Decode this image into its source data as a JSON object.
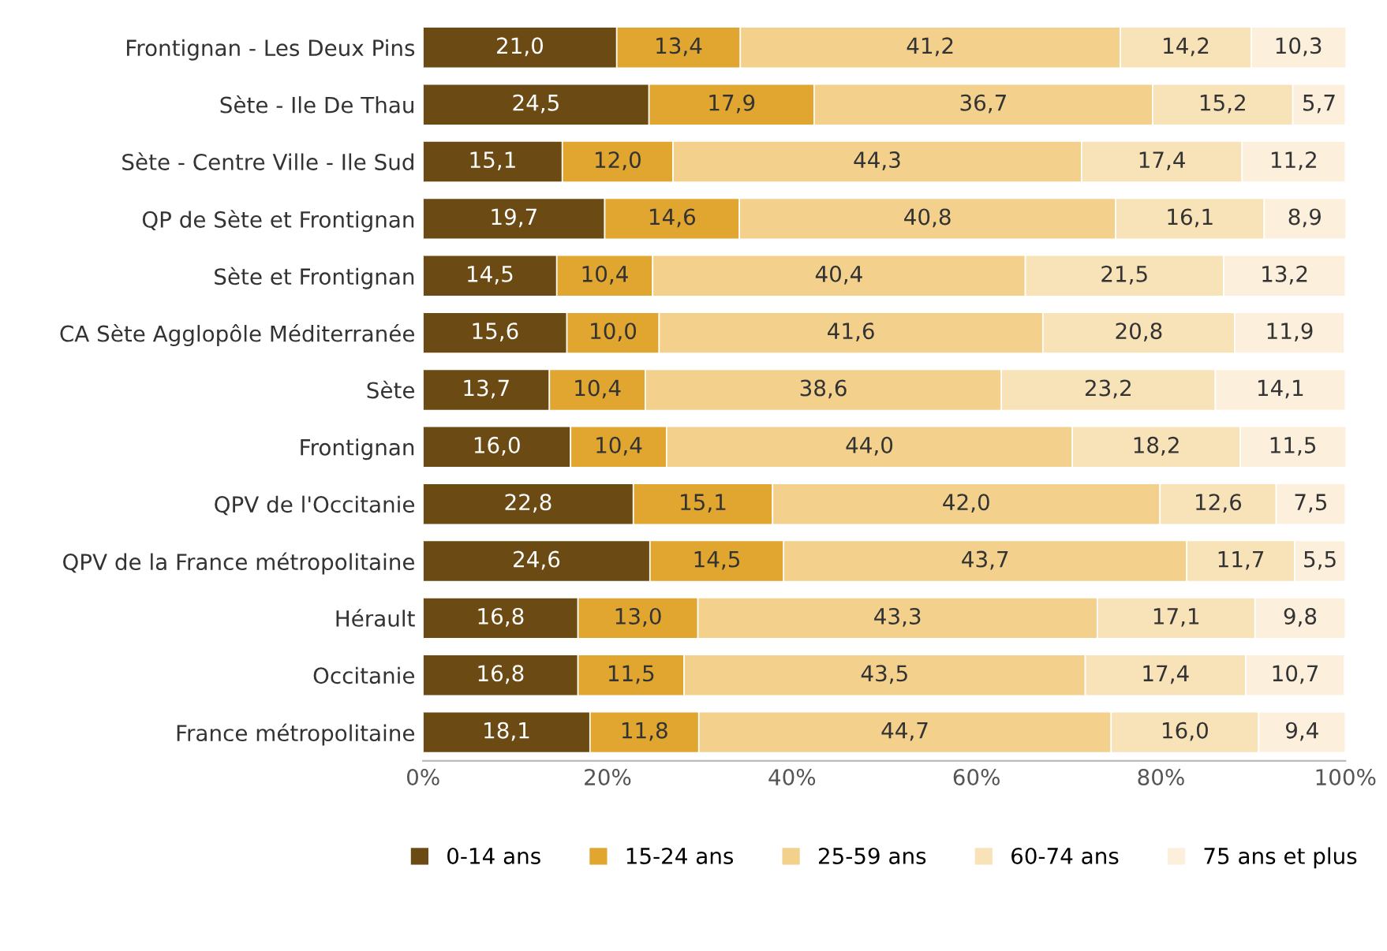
{
  "chart_data": {
    "type": "bar",
    "orientation": "horizontal",
    "stacked": true,
    "categories": [
      "Frontignan - Les Deux Pins",
      "Sète - Ile De Thau",
      "Sète - Centre Ville - Ile Sud",
      "QP de Sète et Frontignan",
      "Sète et Frontignan",
      "CA Sète Agglopôle Méditerranée",
      "Sète",
      "Frontignan",
      "QPV de l'Occitanie",
      "QPV de la France métropolitaine",
      "Hérault",
      "Occitanie",
      "France métropolitaine"
    ],
    "series": [
      {
        "name": "0-14 ans",
        "color": "#6b4a14",
        "values": [
          21.0,
          24.5,
          15.1,
          19.7,
          14.5,
          15.6,
          13.7,
          16.0,
          22.8,
          24.6,
          16.8,
          16.8,
          18.1
        ],
        "value_labels": [
          "21,0",
          "24,5",
          "15,1",
          "19,7",
          "14,5",
          "15,6",
          "13,7",
          "16,0",
          "22,8",
          "24,6",
          "16,8",
          "16,8",
          "18,1"
        ]
      },
      {
        "name": "15-24 ans",
        "color": "#e0a630",
        "values": [
          13.4,
          17.9,
          12.0,
          14.6,
          10.4,
          10.0,
          10.4,
          10.4,
          15.1,
          14.5,
          13.0,
          11.5,
          11.8
        ],
        "value_labels": [
          "13,4",
          "17,9",
          "12,0",
          "14,6",
          "10,4",
          "10,0",
          "10,4",
          "10,4",
          "15,1",
          "14,5",
          "13,0",
          "11,5",
          "11,8"
        ]
      },
      {
        "name": "25-59 ans",
        "color": "#f3d08c",
        "values": [
          41.2,
          36.7,
          44.3,
          40.8,
          40.4,
          41.6,
          38.6,
          44.0,
          42.0,
          43.7,
          43.3,
          43.5,
          44.7
        ],
        "value_labels": [
          "41,2",
          "36,7",
          "44,3",
          "40,8",
          "40,4",
          "41,6",
          "38,6",
          "44,0",
          "42,0",
          "43,7",
          "43,3",
          "43,5",
          "44,7"
        ]
      },
      {
        "name": "60-74 ans",
        "color": "#f8e3b9",
        "values": [
          14.2,
          15.2,
          17.4,
          16.1,
          21.5,
          20.8,
          23.2,
          18.2,
          12.6,
          11.7,
          17.1,
          17.4,
          16.0
        ],
        "value_labels": [
          "14,2",
          "15,2",
          "17,4",
          "16,1",
          "21,5",
          "20,8",
          "23,2",
          "18,2",
          "12,6",
          "11,7",
          "17,1",
          "17,4",
          "16,0"
        ]
      },
      {
        "name": "75 ans et plus",
        "color": "#fcf0dc",
        "values": [
          10.3,
          5.7,
          11.2,
          8.9,
          13.2,
          11.9,
          14.1,
          11.5,
          7.5,
          5.5,
          9.8,
          10.7,
          9.4
        ],
        "value_labels": [
          "10,3",
          "5,7",
          "11,2",
          "8,9",
          "13,2",
          "11,9",
          "14,1",
          "11,5",
          "7,5",
          "5,5",
          "9,8",
          "10,7",
          "9,4"
        ]
      }
    ],
    "xlim": [
      0,
      100
    ],
    "xticks": [
      {
        "value": 0,
        "label": "0%"
      },
      {
        "value": 20,
        "label": "20%"
      },
      {
        "value": 40,
        "label": "40%"
      },
      {
        "value": 60,
        "label": "60%"
      },
      {
        "value": 80,
        "label": "80%"
      },
      {
        "value": 100,
        "label": "100%"
      }
    ],
    "grid": false,
    "legend": "bottom"
  }
}
